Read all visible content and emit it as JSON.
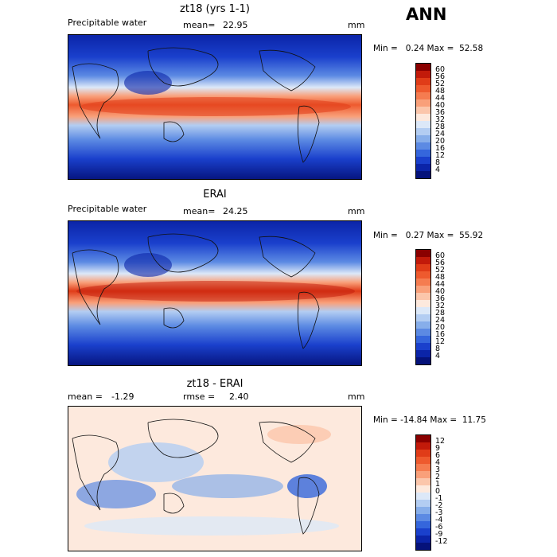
{
  "season": "ANN",
  "panels": [
    {
      "title": "zt18 (yrs 1-1)",
      "left_label": "Precipitable water",
      "stat1_label": "mean=",
      "stat1_value": "22.95",
      "units": "mm",
      "min_label": "Min =",
      "min_value": "0.24",
      "max_label": "Max =",
      "max_value": "52.58",
      "colorbar_ticks": [
        "60",
        "56",
        "52",
        "48",
        "44",
        "40",
        "36",
        "32",
        "28",
        "24",
        "20",
        "16",
        "12",
        "8",
        "4"
      ],
      "colorbar_colors": [
        "#8a0000",
        "#c21a0a",
        "#e03c18",
        "#ee5a2e",
        "#f57c50",
        "#f9a07a",
        "#fbc6ab",
        "#fde9dd",
        "#dce8f8",
        "#b3cdf2",
        "#87aeea",
        "#5c8ae3",
        "#3566dc",
        "#1a40cc",
        "#0b24a8",
        "#05127a"
      ]
    },
    {
      "title": "ERAI",
      "left_label": "Precipitable water",
      "stat1_label": "mean=",
      "stat1_value": "24.25",
      "units": "mm",
      "min_label": "Min =",
      "min_value": "0.27",
      "max_label": "Max =",
      "max_value": "55.92",
      "colorbar_ticks": [
        "60",
        "56",
        "52",
        "48",
        "44",
        "40",
        "36",
        "32",
        "28",
        "24",
        "20",
        "16",
        "12",
        "8",
        "4"
      ],
      "colorbar_colors": [
        "#8a0000",
        "#c21a0a",
        "#e03c18",
        "#ee5a2e",
        "#f57c50",
        "#f9a07a",
        "#fbc6ab",
        "#fde9dd",
        "#dce8f8",
        "#b3cdf2",
        "#87aeea",
        "#5c8ae3",
        "#3566dc",
        "#1a40cc",
        "#0b24a8",
        "#05127a"
      ]
    },
    {
      "title": "zt18 - ERAI",
      "left_label": "mean =",
      "left_value": "-1.29",
      "stat1_label": "rmse =",
      "stat1_value": "2.40",
      "units": "mm",
      "min_label": "Min =",
      "min_value": "-14.84",
      "max_label": "Max =",
      "max_value": "11.75",
      "colorbar_ticks": [
        "12",
        "9",
        "6",
        "4",
        "3",
        "2",
        "1",
        "0",
        "-1",
        "-2",
        "-3",
        "-4",
        "-6",
        "-9",
        "-12"
      ],
      "colorbar_colors": [
        "#8a0000",
        "#c21a0a",
        "#e03c18",
        "#ee5a2e",
        "#f57c50",
        "#f9a07a",
        "#fbc6ab",
        "#fde9dd",
        "#dce8f8",
        "#b3cdf2",
        "#87aeea",
        "#5c8ae3",
        "#3566dc",
        "#1a40cc",
        "#0b24a8",
        "#05127a"
      ]
    }
  ]
}
